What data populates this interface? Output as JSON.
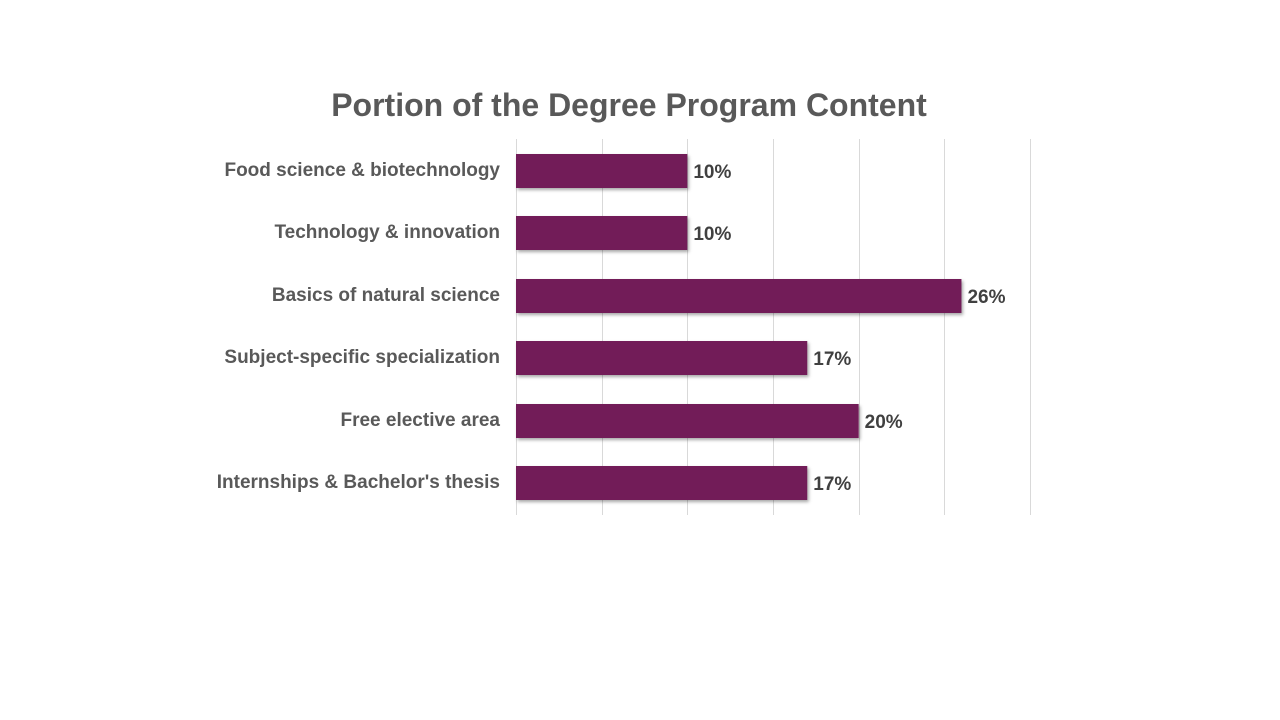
{
  "chart_data": {
    "type": "bar",
    "orientation": "horizontal",
    "title": "Portion of the Degree Program Content",
    "categories": [
      "Food science & biotechnology",
      "Technology & innovation",
      "Basics of natural science",
      "Subject-specific specialization",
      "Free elective area",
      "Internships & Bachelor's thesis"
    ],
    "values": [
      10,
      10,
      26,
      17,
      20,
      17
    ],
    "data_labels": [
      "10%",
      "10%",
      "26%",
      "17%",
      "20%",
      "17%"
    ],
    "xlim": [
      0,
      30
    ],
    "gridlines": [
      0,
      5,
      10,
      15,
      20,
      25,
      30
    ],
    "grid": true,
    "legend": "none",
    "bar_color": "#721f59"
  }
}
